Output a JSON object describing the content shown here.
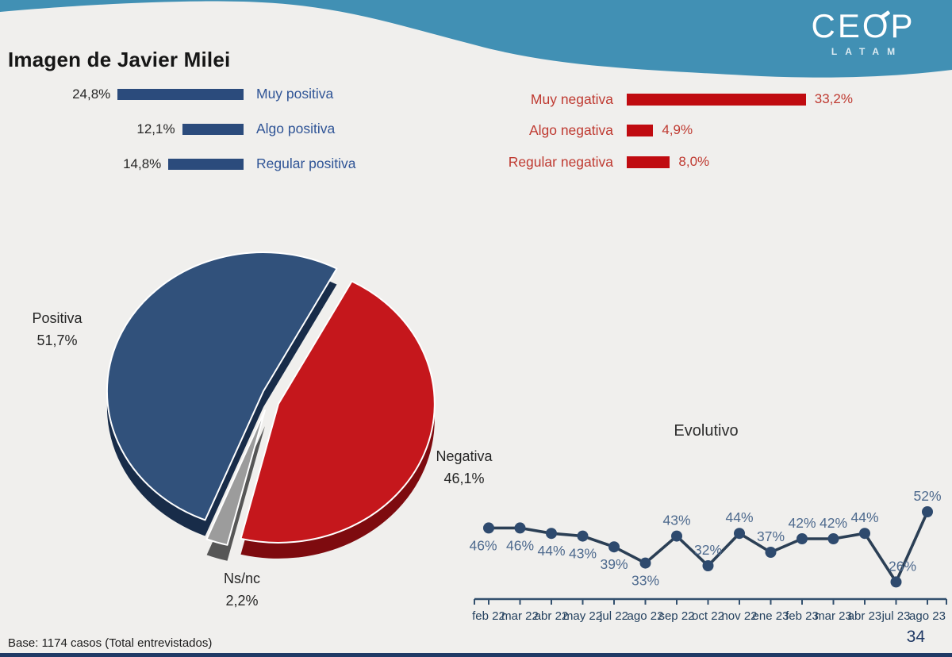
{
  "page": {
    "background": "#f0efed"
  },
  "header": {
    "wave_color": "#4190b4",
    "logo": {
      "text": "CEOP",
      "subtext": "LATAM"
    }
  },
  "title": "Imagen de Javier Milei",
  "chart_data": [
    {
      "type": "bar",
      "id": "positive_breakdown",
      "orientation": "horizontal",
      "bar_color": "#2b4b7c",
      "label_color": "#2f5496",
      "categories": [
        "Muy positiva",
        "Algo positiva",
        "Regular positiva"
      ],
      "values": [
        24.8,
        12.1,
        14.8
      ],
      "value_labels": [
        "24,8%",
        "12,1%",
        "14,8%"
      ]
    },
    {
      "type": "bar",
      "id": "negative_breakdown",
      "orientation": "horizontal",
      "bar_color": "#c00b10",
      "label_color": "#bf3a31",
      "categories": [
        "Muy negativa",
        "Algo negativa",
        "Regular negativa"
      ],
      "values": [
        33.2,
        4.9,
        8.0
      ],
      "value_labels": [
        "33,2%",
        "4,9%",
        "8,0%"
      ]
    },
    {
      "type": "pie",
      "id": "image_summary",
      "effect": "3d-exploded",
      "slices": [
        {
          "label": "Positiva",
          "value": 51.7,
          "display_value": "51,7%",
          "color": "#31517b"
        },
        {
          "label": "Negativa",
          "value": 46.1,
          "display_value": "46,1%",
          "color": "#c5171c"
        },
        {
          "label": "Ns/nc",
          "value": 2.2,
          "display_value": "2,2%",
          "color": "#9c9c9c"
        }
      ]
    },
    {
      "type": "line",
      "id": "evolutivo",
      "title": "Evolutivo",
      "x": [
        "feb 22",
        "mar 22",
        "abr 22",
        "may 22",
        "jul 22",
        "ago 22",
        "sep 22",
        "oct 22",
        "nov 22",
        "ene 23",
        "feb 23",
        "mar 23",
        "abr 23",
        "jul 23",
        "ago 23"
      ],
      "values": [
        46,
        46,
        44,
        43,
        39,
        33,
        43,
        32,
        44,
        37,
        42,
        42,
        44,
        26,
        52
      ],
      "value_labels": [
        "46%",
        "46%",
        "44%",
        "43%",
        "39%",
        "33%",
        "43%",
        "32%",
        "44%",
        "37%",
        "42%",
        "42%",
        "44%",
        "26%",
        "52%"
      ],
      "line_color": "#2b3f55",
      "marker_color": "#2e4a6e",
      "value_label_color": "#4e6a8e",
      "axis_label_color": "#24415f",
      "ylim": [
        20,
        60
      ],
      "grid": false,
      "legend": "none"
    }
  ],
  "footer": {
    "base_note": "Base: 1174 casos (Total entrevistados)",
    "page_number": "34"
  }
}
